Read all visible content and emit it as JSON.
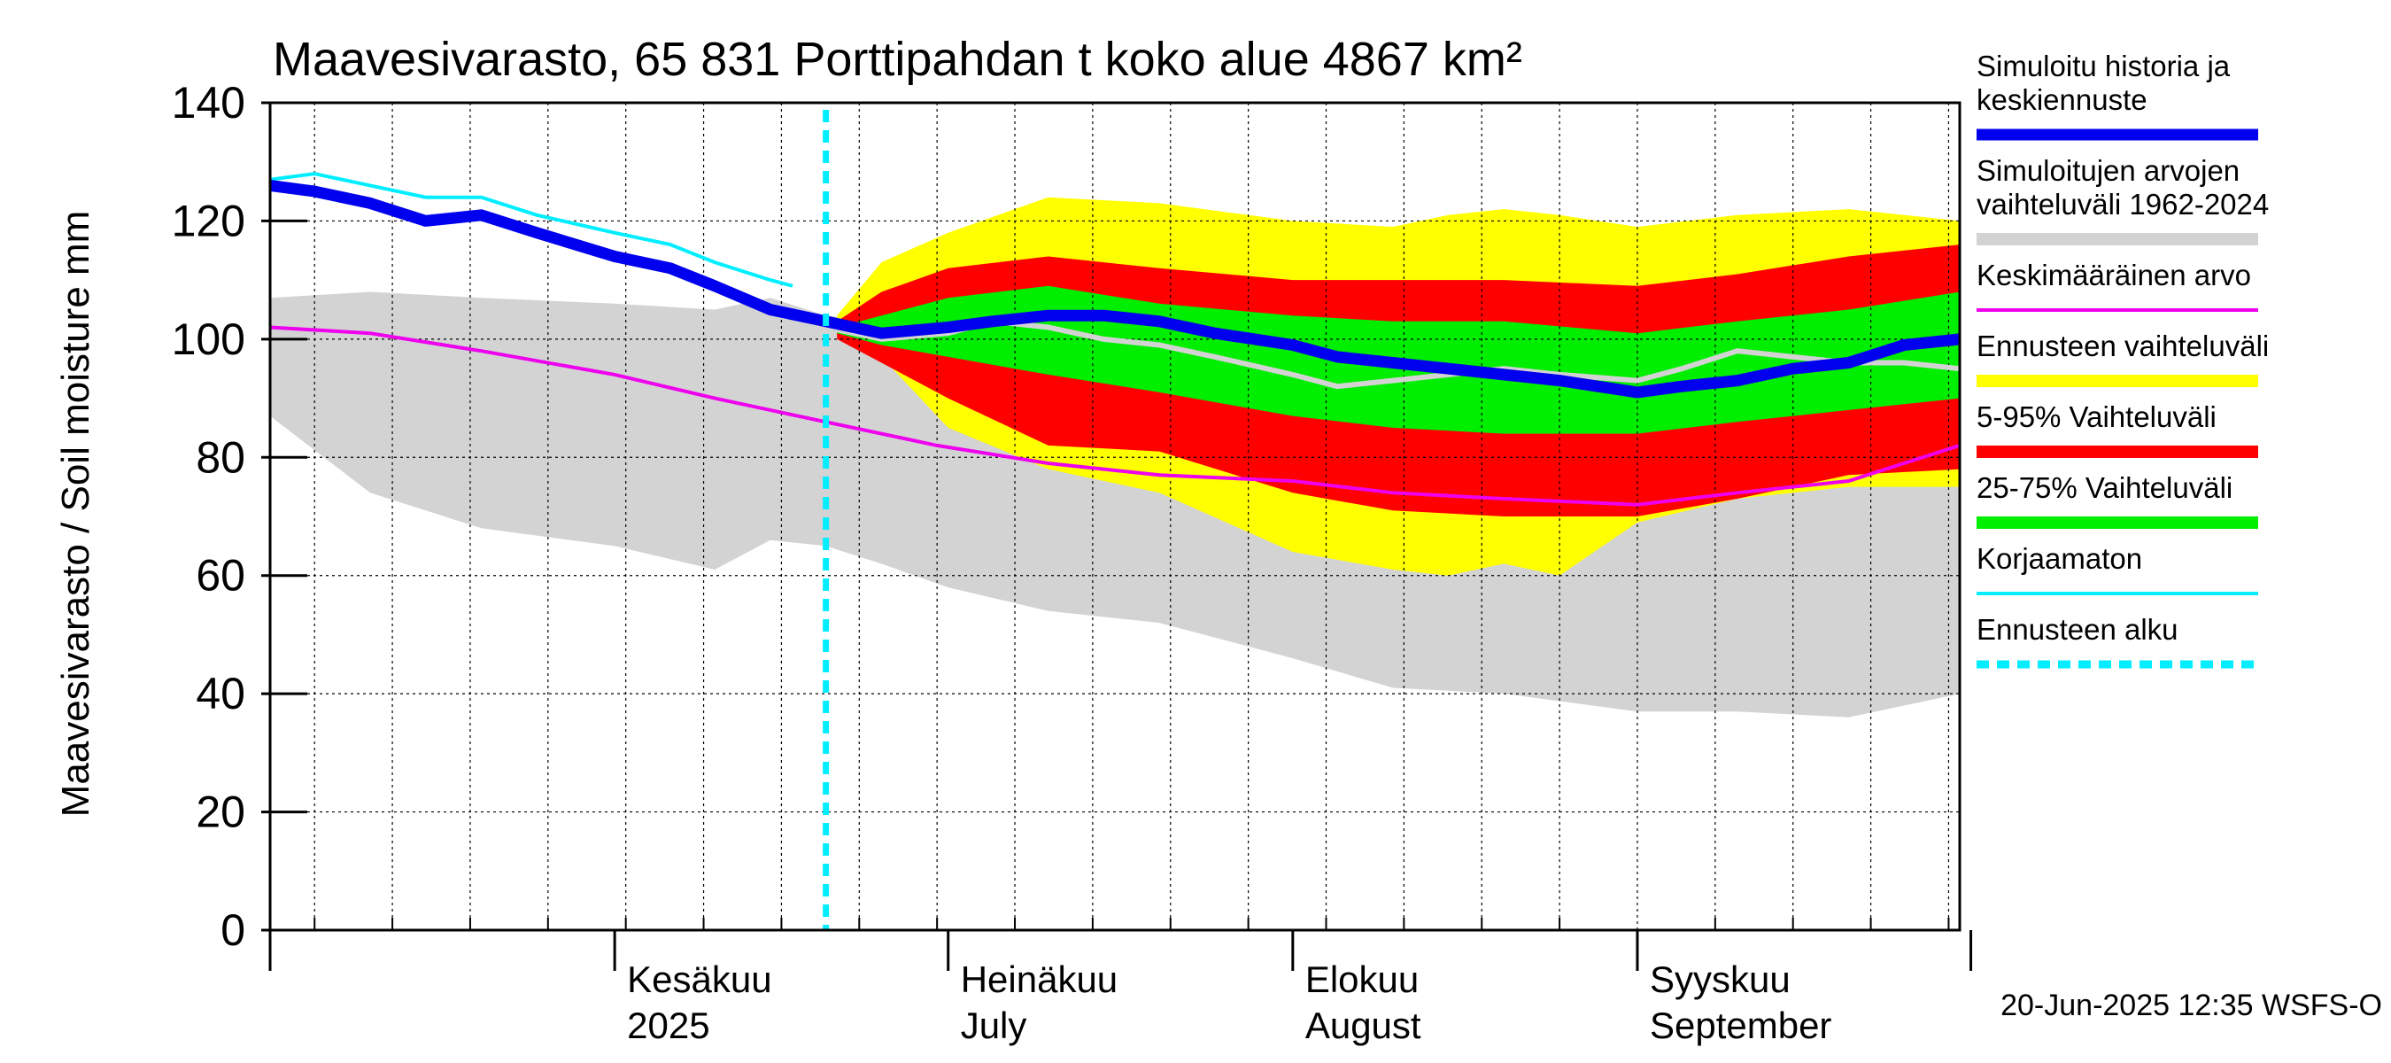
{
  "chart_data": {
    "type": "area",
    "title": "Maavesivarasto, 65 831 Porttipahdan t koko alue 4867 km²",
    "ylabel": "Maavesivarasto / Soil moisture   mm",
    "ylim": [
      0,
      140
    ],
    "yticks": [
      "0",
      "20",
      "40",
      "60",
      "80",
      "100",
      "120",
      "140"
    ],
    "xlim": [
      "2025-05-01",
      "2025-09-30"
    ],
    "grid": true,
    "legend_position": "right",
    "month_labels": [
      {
        "date": "2025-06-01",
        "line1": "Kesäkuu",
        "line2": "2025"
      },
      {
        "date": "2025-07-01",
        "line1": "Heinäkuu",
        "line2": "July"
      },
      {
        "date": "2025-08-01",
        "line1": "Elokuu",
        "line2": "August"
      },
      {
        "date": "2025-09-01",
        "line1": "Syyskuu",
        "line2": "September"
      }
    ],
    "forecast_start": "2025-06-20",
    "footer": "20-Jun-2025 12:35 WSFS-O",
    "legend": [
      {
        "label": "Simuloitu historia ja keskiennuste",
        "lines": [
          "Simuloitu historia ja",
          "keskiennuste"
        ],
        "color": "#0000ee",
        "style": "thick"
      },
      {
        "label": "Simuloitujen arvojen vaihteluväli 1962-2024",
        "lines": [
          "Simuloitujen arvojen",
          "vaihteluväli 1962-2024"
        ],
        "color": "#d3d3d3",
        "style": "band"
      },
      {
        "label": "Keskimääräinen arvo",
        "lines": [
          "Keskimääräinen arvo"
        ],
        "color": "#ee00ee",
        "style": "thin"
      },
      {
        "label": "Ennusteen vaihteluväli",
        "lines": [
          "Ennusteen vaihteluväli"
        ],
        "color": "#ffff00",
        "style": "band"
      },
      {
        "label": "5-95% Vaihteluväli",
        "lines": [
          "5-95% Vaihteluväli"
        ],
        "color": "#ff0000",
        "style": "band"
      },
      {
        "label": "25-75% Vaihteluväli",
        "lines": [
          "25-75% Vaihteluväli"
        ],
        "color": "#00ee00",
        "style": "band"
      },
      {
        "label": "Korjaamaton",
        "lines": [
          "Korjaamaton"
        ],
        "color": "#00eeff",
        "style": "thin"
      },
      {
        "label": "Ennusteen alku",
        "lines": [
          "Ennusteen alku"
        ],
        "color": "#00eeff",
        "style": "dashed"
      }
    ],
    "series": {
      "hist_range": {
        "name": "Simuloitujen arvojen vaihteluväli 1962-2024",
        "color": "#d3d3d3",
        "x": [
          "2025-05-01",
          "2025-05-10",
          "2025-05-20",
          "2025-06-01",
          "2025-06-10",
          "2025-06-15",
          "2025-06-20",
          "2025-06-25",
          "2025-07-01",
          "2025-07-10",
          "2025-07-20",
          "2025-08-01",
          "2025-08-10",
          "2025-08-20",
          "2025-09-01",
          "2025-09-10",
          "2025-09-20",
          "2025-09-30"
        ],
        "upper": [
          107,
          108,
          107,
          106,
          105,
          107,
          104,
          103,
          102,
          100,
          99,
          97,
          95,
          88,
          91,
          83,
          76,
          76
        ],
        "lower": [
          87,
          74,
          68,
          65,
          61,
          66,
          65,
          62,
          58,
          54,
          52,
          46,
          41,
          40,
          37,
          37,
          36,
          40
        ]
      },
      "fc_range": {
        "name": "Ennusteen vaihteluväli",
        "color": "#ffff00",
        "x": [
          "2025-06-21",
          "2025-06-25",
          "2025-07-01",
          "2025-07-10",
          "2025-07-20",
          "2025-08-01",
          "2025-08-10",
          "2025-08-15",
          "2025-08-20",
          "2025-08-25",
          "2025-09-01",
          "2025-09-10",
          "2025-09-20",
          "2025-09-30"
        ],
        "upper": [
          104,
          113,
          118,
          124,
          123,
          120,
          119,
          121,
          122,
          121,
          119,
          121,
          122,
          120
        ],
        "lower": [
          101,
          97,
          85,
          78,
          74,
          64,
          61,
          60,
          62,
          60,
          69,
          73,
          75,
          75
        ]
      },
      "p5_95": {
        "name": "5-95% Vaihteluväli",
        "color": "#ff0000",
        "x": [
          "2025-06-21",
          "2025-06-25",
          "2025-07-01",
          "2025-07-10",
          "2025-07-20",
          "2025-08-01",
          "2025-08-10",
          "2025-08-20",
          "2025-09-01",
          "2025-09-10",
          "2025-09-20",
          "2025-09-30"
        ],
        "upper": [
          103,
          108,
          112,
          114,
          112,
          110,
          110,
          110,
          109,
          111,
          114,
          116
        ],
        "lower": [
          100,
          96,
          90,
          82,
          81,
          74,
          71,
          70,
          70,
          73,
          77,
          78
        ]
      },
      "p25_75": {
        "name": "25-75% Vaihteluväli",
        "color": "#00ee00",
        "x": [
          "2025-06-21",
          "2025-06-25",
          "2025-07-01",
          "2025-07-10",
          "2025-07-20",
          "2025-08-01",
          "2025-08-10",
          "2025-08-20",
          "2025-09-01",
          "2025-09-10",
          "2025-09-20",
          "2025-09-30"
        ],
        "upper": [
          102,
          104,
          107,
          109,
          106,
          104,
          103,
          103,
          101,
          103,
          105,
          108
        ],
        "lower": [
          101,
          99,
          97,
          94,
          91,
          87,
          85,
          84,
          84,
          86,
          88,
          90
        ]
      },
      "mean": {
        "name": "Keskimääräinen arvo",
        "color": "#ee00ee",
        "x": [
          "2025-05-01",
          "2025-05-10",
          "2025-05-20",
          "2025-06-01",
          "2025-06-10",
          "2025-06-20",
          "2025-06-30",
          "2025-07-10",
          "2025-07-20",
          "2025-08-01",
          "2025-08-10",
          "2025-08-20",
          "2025-09-01",
          "2025-09-10",
          "2025-09-20",
          "2025-09-30"
        ],
        "y": [
          102,
          101,
          98,
          94,
          90,
          86,
          82,
          79,
          77,
          76,
          74,
          73,
          72,
          74,
          76,
          82
        ]
      },
      "corrected_free": {
        "name": "Korjaamaton",
        "color": "#00eeff",
        "x": [
          "2025-05-01",
          "2025-05-05",
          "2025-05-10",
          "2025-05-15",
          "2025-05-20",
          "2025-05-25",
          "2025-06-01",
          "2025-06-06",
          "2025-06-10",
          "2025-06-15",
          "2025-06-17"
        ],
        "y": [
          127,
          128,
          126,
          124,
          124,
          121,
          118,
          116,
          113,
          110,
          109
        ]
      },
      "sim": {
        "name": "Simuloitu historia ja keskiennuste",
        "color": "#0000ee",
        "x": [
          "2025-05-01",
          "2025-05-05",
          "2025-05-10",
          "2025-05-15",
          "2025-05-20",
          "2025-05-25",
          "2025-06-01",
          "2025-06-06",
          "2025-06-10",
          "2025-06-15",
          "2025-06-20",
          "2025-06-25",
          "2025-07-01",
          "2025-07-05",
          "2025-07-10",
          "2025-07-15",
          "2025-07-20",
          "2025-07-25",
          "2025-08-01",
          "2025-08-05",
          "2025-08-10",
          "2025-08-15",
          "2025-08-20",
          "2025-08-25",
          "2025-09-01",
          "2025-09-05",
          "2025-09-10",
          "2025-09-15",
          "2025-09-20",
          "2025-09-25",
          "2025-09-30"
        ],
        "y": [
          126,
          125,
          123,
          120,
          121,
          118,
          114,
          112,
          109,
          105,
          103,
          101,
          102,
          103,
          104,
          104,
          103,
          101,
          99,
          97,
          96,
          95,
          94,
          93,
          91,
          92,
          93,
          95,
          96,
          99,
          100
        ]
      },
      "median_forecast": {
        "name": "",
        "color": "#d3d3d3",
        "x": [
          "2025-06-20",
          "2025-06-25",
          "2025-07-01",
          "2025-07-05",
          "2025-07-10",
          "2025-07-15",
          "2025-07-20",
          "2025-07-25",
          "2025-08-01",
          "2025-08-05",
          "2025-08-10",
          "2025-08-15",
          "2025-08-20",
          "2025-08-25",
          "2025-09-01",
          "2025-09-05",
          "2025-09-10",
          "2025-09-15",
          "2025-09-20",
          "2025-09-25",
          "2025-09-30"
        ],
        "y": [
          102,
          100,
          101,
          103,
          102,
          100,
          99,
          97,
          94,
          92,
          93,
          94,
          95,
          94,
          93,
          95,
          98,
          97,
          96,
          96,
          95
        ]
      }
    }
  }
}
